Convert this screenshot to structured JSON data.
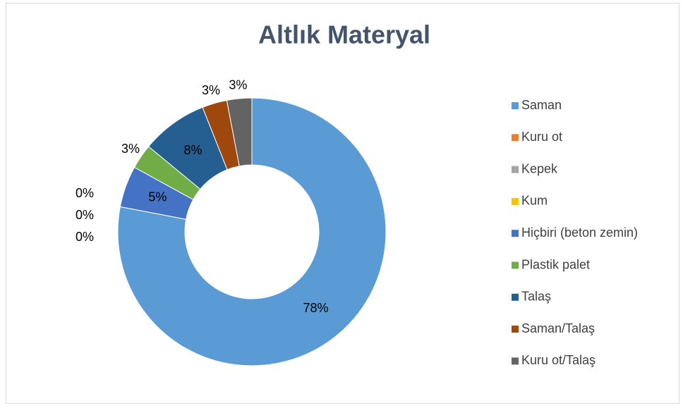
{
  "chart_data": {
    "type": "donut",
    "title": "Altlık Materyal",
    "categories": [
      "Saman",
      "Kuru ot",
      "Kepek",
      "Kum",
      "Hiçbiri (beton zemin)",
      "Plastik palet",
      "Talaş",
      "Saman/Talaş",
      "Kuru ot/Talaş"
    ],
    "values": [
      78,
      0,
      0,
      0,
      5,
      3,
      8,
      3,
      3
    ],
    "value_labels": [
      "78%",
      "0%",
      "0%",
      "0%",
      "5%",
      "3%",
      "8%",
      "3%",
      "3%"
    ],
    "colors": [
      "#5b9bd5",
      "#ed7d31",
      "#a5a5a5",
      "#ffc000",
      "#4472c4",
      "#70ad47",
      "#255e91",
      "#9e480e",
      "#636363"
    ],
    "legend": "right"
  }
}
